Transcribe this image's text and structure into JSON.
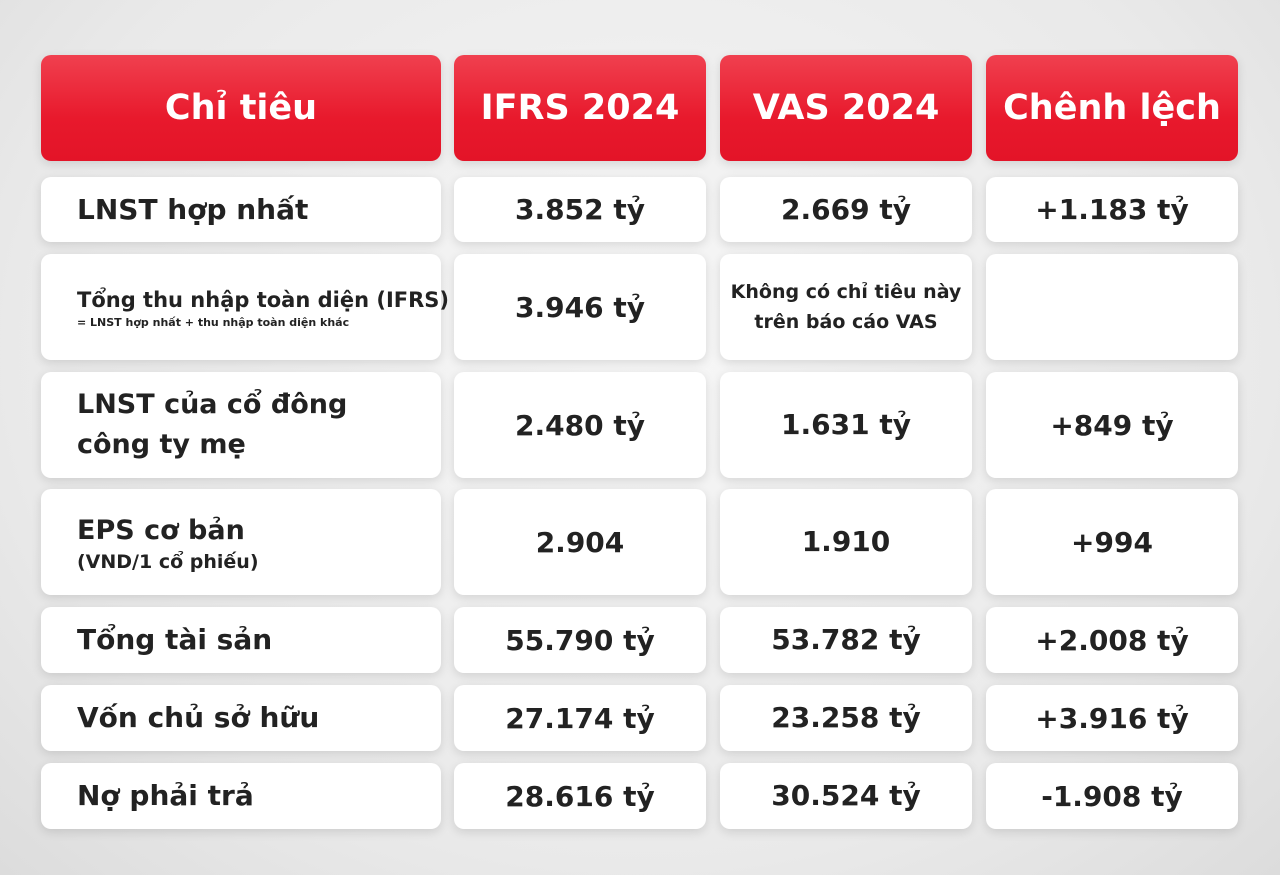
{
  "table": {
    "header": [
      "Chỉ tiêu",
      "IFRS 2024",
      "VAS 2024",
      "Chênh lệch"
    ],
    "rows": [
      {
        "label": [
          "LNST hợp nhất"
        ],
        "ifrs": "3.852 tỷ",
        "vas": [
          "2.669 tỷ"
        ],
        "diff": "+1.183 tỷ"
      },
      {
        "label": [
          "Tổng thu nhập toàn diện (IFRS)"
        ],
        "note": "= LNST hợp nhất + thu nhập toàn diện khác",
        "ifrs": "3.946 tỷ",
        "vas": [
          "Không có chỉ tiêu này",
          "trên báo cáo VAS"
        ]
      },
      {
        "label": [
          "LNST của cổ đông",
          "công ty mẹ"
        ],
        "ifrs": "2.480 tỷ",
        "vas": [
          "1.631 tỷ"
        ],
        "diff": "+849 tỷ"
      },
      {
        "label": [
          "EPS cơ bản"
        ],
        "note": "(VND/1 cổ phiếu)",
        "ifrs": "2.904",
        "vas": [
          "1.910"
        ],
        "diff": "+994"
      },
      {
        "label": [
          "Tổng tài sản"
        ],
        "ifrs": "55.790 tỷ",
        "vas": [
          "53.782 tỷ"
        ],
        "diff": "+2.008 tỷ"
      },
      {
        "label": [
          "Vốn chủ sở hữu"
        ],
        "ifrs": "27.174 tỷ",
        "vas": [
          "23.258 tỷ"
        ],
        "diff": "+3.916 tỷ"
      },
      {
        "label": [
          "Nợ phải trả"
        ],
        "ifrs": "28.616 tỷ",
        "vas": [
          "30.524 tỷ"
        ],
        "diff": "-1.908 tỷ"
      }
    ]
  }
}
